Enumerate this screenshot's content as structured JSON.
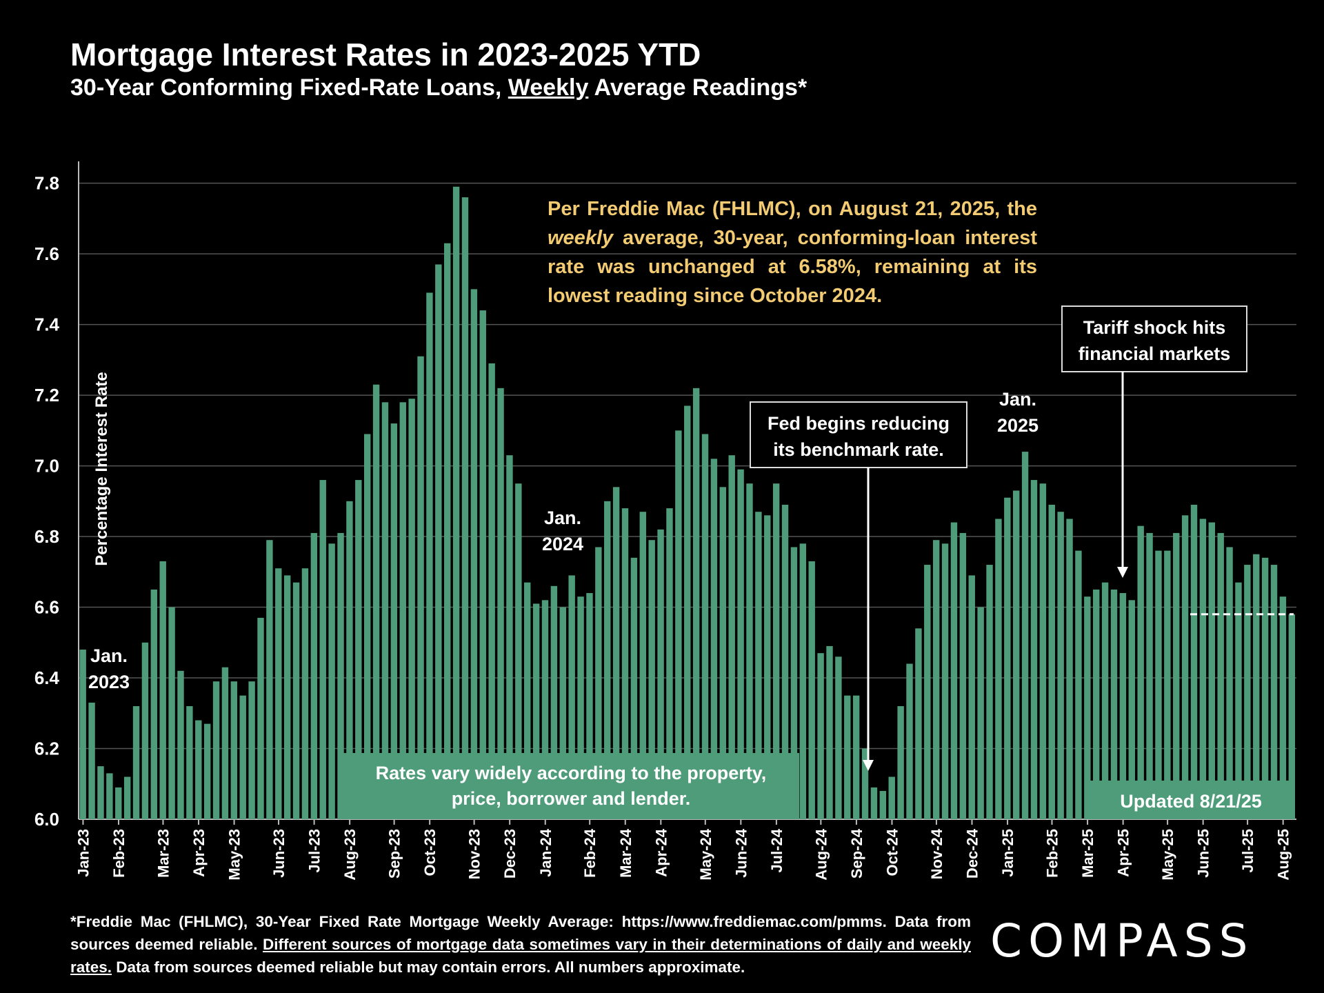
{
  "header": {
    "title": "Mortgage Interest Rates in 2023-2025 YTD",
    "subtitle_pre": "30-Year Conforming Fixed-Rate Loans, ",
    "subtitle_underlined": "Weekly",
    "subtitle_post": " Average Readings*"
  },
  "chart_data": {
    "type": "bar",
    "title": "Mortgage Interest Rates in 2023-2025 YTD",
    "ylabel": "Percentage Interest  Rate",
    "xlabel": "",
    "ylim": [
      6.0,
      7.85
    ],
    "yticks": [
      6.0,
      6.2,
      6.4,
      6.6,
      6.8,
      7.0,
      7.2,
      7.4,
      7.6,
      7.8
    ],
    "grid": true,
    "bar_color": "#4f9c7b",
    "month_labels": [
      "Jan-23",
      "Feb-23",
      "Mar-23",
      "Apr-23",
      "May-23",
      "Jun-23",
      "Jul-23",
      "Aug-23",
      "Sep-23",
      "Oct-23",
      "Nov-23",
      "Dec-23",
      "Jan-24",
      "Feb-24",
      "Mar-24",
      "Apr-24",
      "May-24",
      "Jun-24",
      "Jul-24",
      "Aug-24",
      "Sep-24",
      "Oct-24",
      "Nov-24",
      "Dec-24",
      "Jan-25",
      "Feb-25",
      "Mar-25",
      "Apr-25",
      "May-25",
      "Jun-25",
      "Jul-25",
      "Aug-25"
    ],
    "values": [
      6.48,
      6.33,
      6.15,
      6.13,
      6.09,
      6.12,
      6.32,
      6.5,
      6.65,
      6.73,
      6.6,
      6.42,
      6.32,
      6.28,
      6.27,
      6.39,
      6.43,
      6.39,
      6.35,
      6.39,
      6.57,
      6.79,
      6.71,
      6.69,
      6.67,
      6.71,
      6.81,
      6.96,
      6.78,
      6.81,
      6.9,
      6.96,
      7.09,
      7.23,
      7.18,
      7.12,
      7.18,
      7.19,
      7.31,
      7.49,
      7.57,
      7.63,
      7.79,
      7.76,
      7.5,
      7.44,
      7.29,
      7.22,
      7.03,
      6.95,
      6.67,
      6.61,
      6.62,
      6.66,
      6.6,
      6.69,
      6.63,
      6.64,
      6.77,
      6.9,
      6.94,
      6.88,
      6.74,
      6.87,
      6.79,
      6.82,
      6.88,
      7.1,
      7.17,
      7.22,
      7.09,
      7.02,
      6.94,
      7.03,
      6.99,
      6.95,
      6.87,
      6.86,
      6.95,
      6.89,
      6.77,
      6.78,
      6.73,
      6.47,
      6.49,
      6.46,
      6.35,
      6.35,
      6.2,
      6.09,
      6.08,
      6.12,
      6.32,
      6.44,
      6.54,
      6.72,
      6.79,
      6.78,
      6.84,
      6.81,
      6.69,
      6.6,
      6.72,
      6.85,
      6.91,
      6.93,
      7.04,
      6.96,
      6.95,
      6.89,
      6.87,
      6.85,
      6.76,
      6.63,
      6.65,
      6.67,
      6.65,
      6.64,
      6.62,
      6.83,
      6.81,
      6.76,
      6.76,
      6.81,
      6.86,
      6.89,
      6.85,
      6.84,
      6.81,
      6.77,
      6.67,
      6.72,
      6.75,
      6.74,
      6.72,
      6.63,
      6.58
    ],
    "reference_line": 6.58,
    "annotations": [
      {
        "text": "Jan.\n2023"
      },
      {
        "text": "Jan.\n2024"
      },
      {
        "text": "Jan.\n2025"
      }
    ]
  },
  "callouts": {
    "freddie_a": "Per Freddie Mac (FHLMC), on August 21, 2025, the ",
    "freddie_em": "weekly",
    "freddie_b": " average, 30-year, conforming-loan interest rate was unchanged at 6.58%, remaining at its lowest reading since October 2024.",
    "fed": "Fed begins reducing\nits benchmark rate.",
    "tariff": "Tariff shock hits\nfinancial markets",
    "rates_vary": "Rates vary widely according to the property,\nprice, borrower and lender.",
    "updated": "Updated 8/21/25"
  },
  "footer": {
    "line1": "*Freddie Mac (FHLMC), 30-Year Fixed Rate Mortgage Weekly Average:  https://www.freddiemac.com/pmms. Data from sources deemed reliable. ",
    "underlined": "Different sources of mortgage data sometimes vary in their determinations of daily and weekly rates.",
    "line2": " Data from sources deemed reliable but may contain errors. All numbers approximate.",
    "logo": "COMPASS"
  }
}
